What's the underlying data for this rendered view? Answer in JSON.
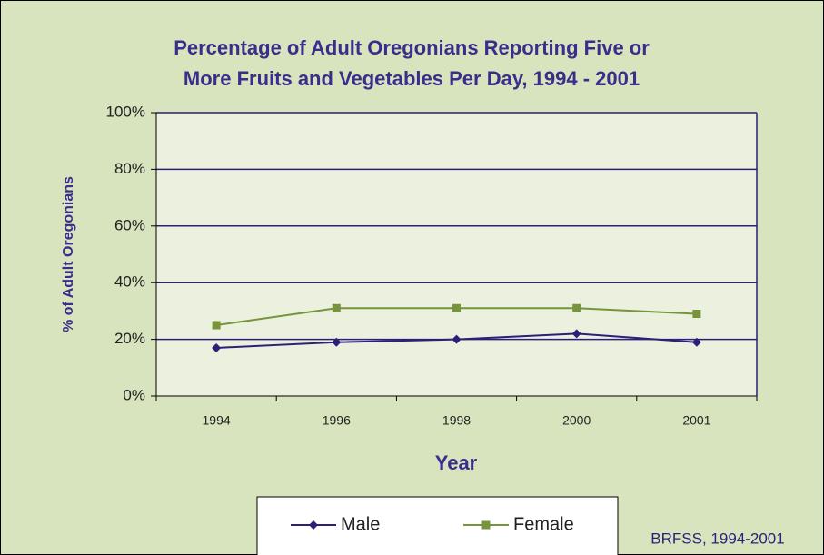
{
  "chart_data": {
    "type": "line",
    "title": [
      "Percentage of Adult Oregonians Reporting Five or",
      "More Fruits and Vegetables Per Day, 1994 - 2001"
    ],
    "x_label": "Year",
    "y_label": "% of Adult Oregonians",
    "source": "BRFSS, 1994-2001",
    "categories": [
      "1994",
      "1996",
      "1998",
      "2000",
      "2001"
    ],
    "series": [
      {
        "name": "Male",
        "color": "#2b1f7a",
        "marker": "diamond",
        "values": [
          17,
          19,
          20,
          22,
          19
        ]
      },
      {
        "name": "Female",
        "color": "#77933c",
        "marker": "square",
        "values": [
          25,
          31,
          31,
          31,
          29
        ]
      }
    ],
    "ylim": [
      0,
      100
    ],
    "yticks": [
      {
        "value": 0,
        "label": "0%"
      },
      {
        "value": 20,
        "label": "20%"
      },
      {
        "value": 40,
        "label": "40%"
      },
      {
        "value": 60,
        "label": "60%"
      },
      {
        "value": 80,
        "label": "80%"
      },
      {
        "value": 100,
        "label": "100%"
      }
    ],
    "grid": true,
    "legend": "bottom"
  }
}
